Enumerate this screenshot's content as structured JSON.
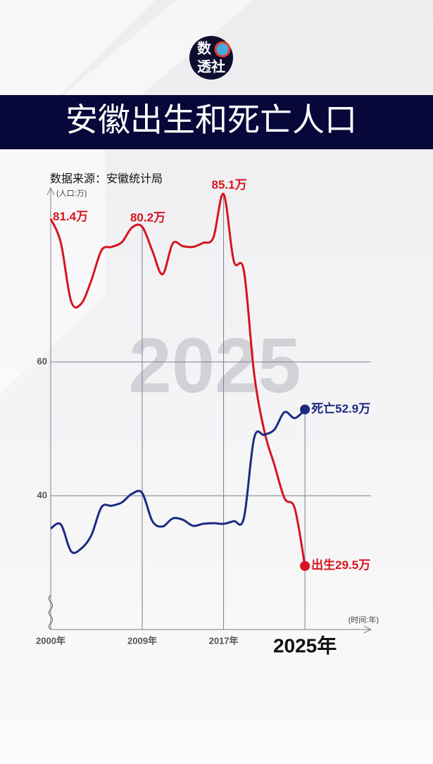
{
  "logo": [
    "数",
    "透社"
  ],
  "chart_data": {
    "type": "line",
    "title": "安徽出生和死亡人口",
    "source": "数据来源：安徽统计局",
    "y_label": "(人口:万)",
    "x_label": "(时间:年)",
    "watermark": "2025",
    "x": [
      2000,
      2001,
      2002,
      2003,
      2004,
      2005,
      2006,
      2007,
      2008,
      2009,
      2010,
      2011,
      2012,
      2013,
      2014,
      2015,
      2016,
      2017,
      2018,
      2019,
      2020,
      2021,
      2022,
      2023,
      2024,
      2025
    ],
    "series": [
      {
        "name": "出生",
        "color": "#d7141e",
        "values": [
          81.4,
          77.8,
          69.1,
          68.7,
          72.2,
          76.7,
          77.2,
          77.9,
          80.1,
          80.2,
          76.6,
          73.1,
          77.7,
          77.3,
          77.2,
          77.8,
          78.6,
          85.1,
          75.1,
          73.6,
          58.3,
          49.7,
          44.6,
          39.6,
          38.1,
          29.5
        ],
        "value_labels": [
          "81.4万",
          null,
          null,
          null,
          null,
          null,
          null,
          null,
          null,
          "80.2万",
          null,
          null,
          null,
          null,
          null,
          null,
          null,
          "85.1万",
          null,
          null,
          null,
          null,
          null,
          null,
          null,
          "出生29.5万"
        ]
      },
      {
        "name": "死亡",
        "color": "#1c2a80",
        "values": [
          35.1,
          35.7,
          31.7,
          32.1,
          34.1,
          38.3,
          38.5,
          39.0,
          40.3,
          40.4,
          36.2,
          35.4,
          36.6,
          36.4,
          35.5,
          35.8,
          35.9,
          35.8,
          36.2,
          36.7,
          48.6,
          49.1,
          49.9,
          52.5,
          51.6,
          52.9
        ],
        "value_labels": [
          null,
          null,
          null,
          null,
          null,
          null,
          null,
          null,
          null,
          null,
          null,
          null,
          null,
          null,
          null,
          null,
          null,
          null,
          null,
          null,
          null,
          null,
          null,
          null,
          null,
          "死亡52.9万"
        ]
      }
    ],
    "xlim": [
      2000,
      2031.5
    ],
    "ylim": [
      20,
      86
    ],
    "xticks": [
      {
        "value": 2000,
        "label": "2000年"
      },
      {
        "value": 2009,
        "label": "2009年"
      },
      {
        "value": 2017,
        "label": "2017年"
      },
      {
        "value": 2025,
        "label": "2025年"
      }
    ],
    "yticks": [
      40,
      60
    ],
    "grid": true
  }
}
